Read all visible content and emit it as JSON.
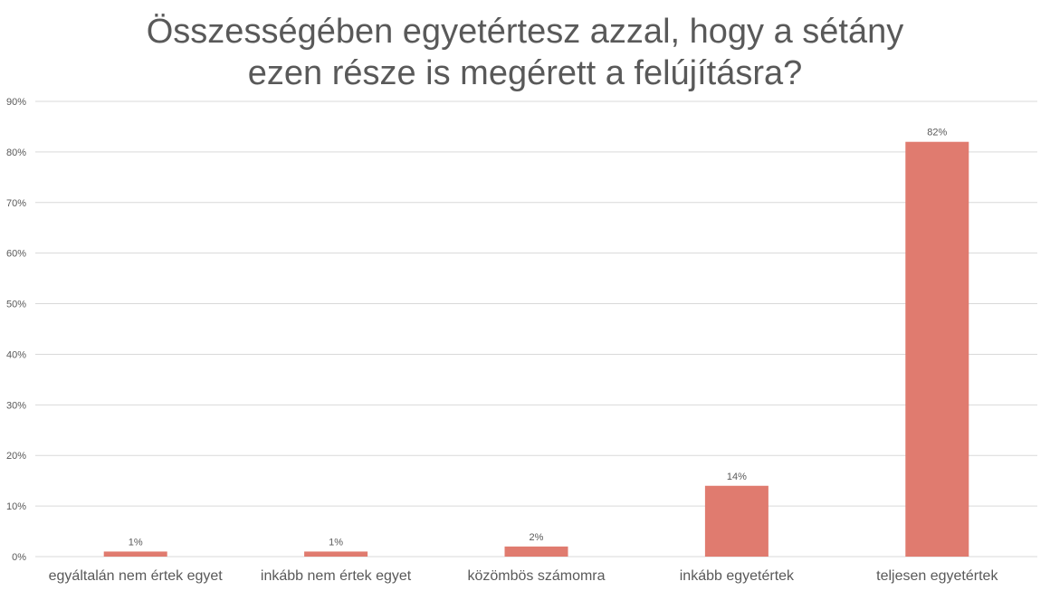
{
  "chart_data": {
    "type": "bar",
    "title_lines": [
      "Összességében egyetértesz azzal, hogy a sétány",
      "ezen része is megérett a felújításra?"
    ],
    "categories": [
      "egyáltalán nem értek egyet",
      "inkább nem értek egyet",
      "közömbös számomra",
      "inkább egyetértek",
      "teljesen egyetértek"
    ],
    "values": [
      1,
      1,
      2,
      14,
      82
    ],
    "data_labels": [
      "1%",
      "1%",
      "2%",
      "14%",
      "82%"
    ],
    "ylim": [
      0,
      90
    ],
    "yticks": [
      0,
      10,
      20,
      30,
      40,
      50,
      60,
      70,
      80,
      90
    ],
    "ytick_labels": [
      "0%",
      "10%",
      "20%",
      "30%",
      "40%",
      "50%",
      "60%",
      "70%",
      "80%",
      "90%"
    ],
    "grid": true,
    "colors": {
      "bar": "#E07B6F",
      "grid": "#D9D9D9",
      "text": "#595959"
    }
  }
}
